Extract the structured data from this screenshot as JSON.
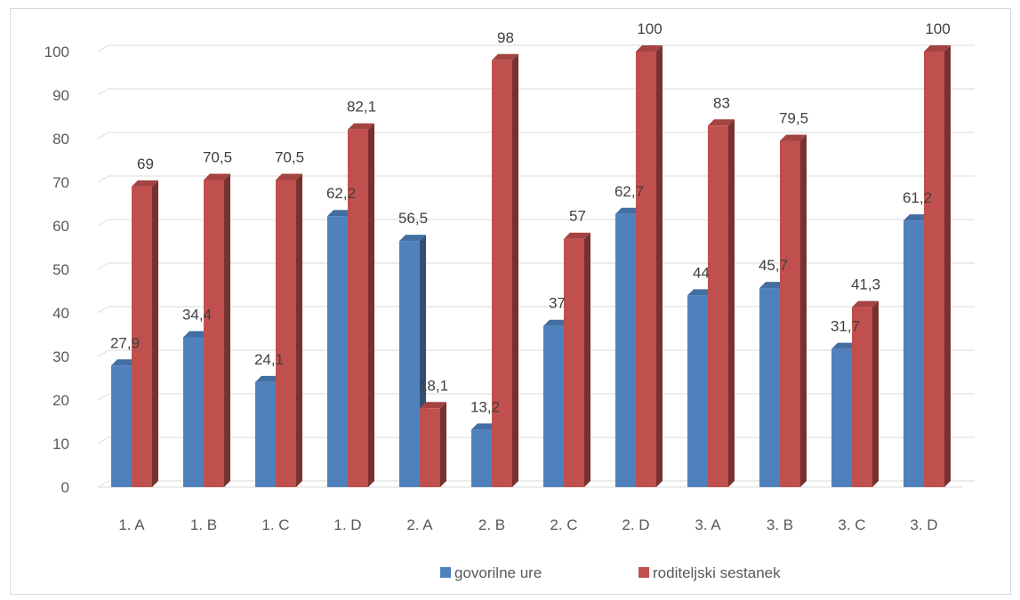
{
  "chart_data": {
    "type": "bar",
    "categories": [
      "1. A",
      "1. B",
      "1. C",
      "1. D",
      "2. A",
      "2. B",
      "2. C",
      "2. D",
      "3. A",
      "3. B",
      "3. C",
      "3. D"
    ],
    "series": [
      {
        "name": "govorilne ure",
        "color": "#4f81bd",
        "values": [
          27.9,
          34.4,
          24.1,
          62.2,
          56.5,
          13.2,
          37,
          62.7,
          44,
          45.7,
          31.7,
          61.2
        ],
        "labels": [
          "27,9",
          "34,4",
          "24,1",
          "62,2",
          "56,5",
          "13,2",
          "37",
          "62,7",
          "44",
          "45,7",
          "31,7",
          "61,2"
        ]
      },
      {
        "name": "roditeljski sestanek",
        "color": "#c0504d",
        "values": [
          69,
          70.5,
          70.5,
          82.1,
          18.1,
          98,
          57,
          100,
          83,
          79.5,
          41.3,
          100
        ],
        "labels": [
          "69",
          "70,5",
          "70,5",
          "82,1",
          "18,1",
          "98",
          "57",
          "100",
          "83",
          "79,5",
          "41,3",
          "100"
        ]
      }
    ],
    "y_ticks": [
      "0",
      "10",
      "20",
      "30",
      "40",
      "50",
      "60",
      "70",
      "80",
      "90",
      "100"
    ],
    "ylim": [
      0,
      100
    ],
    "grid": true,
    "legend_position": "bottom",
    "style": "3d-column",
    "title": "",
    "xlabel": "",
    "ylabel": ""
  }
}
